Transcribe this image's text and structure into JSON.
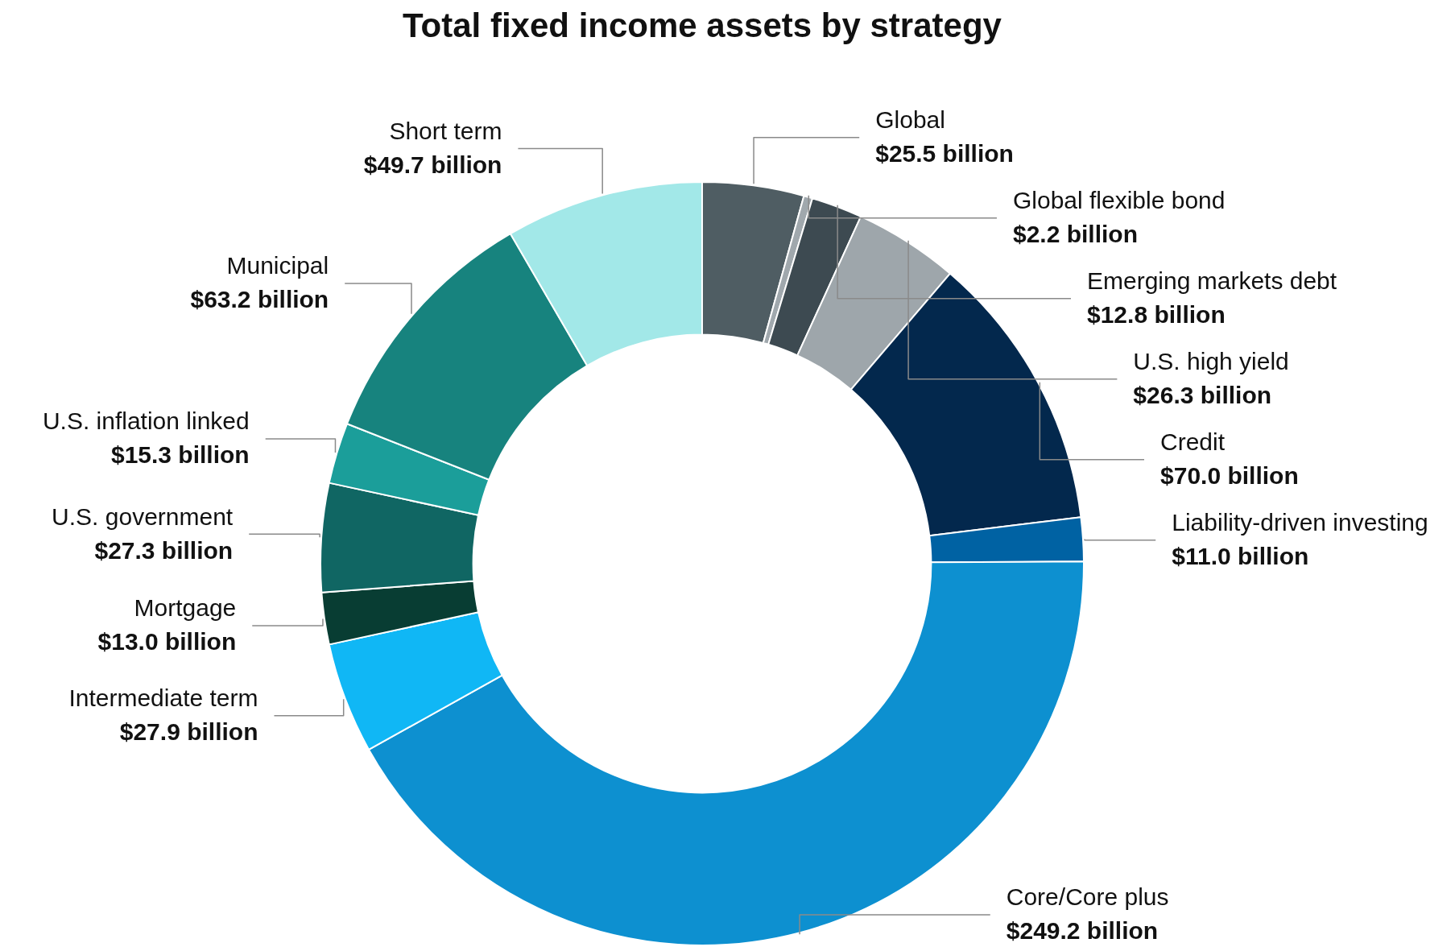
{
  "chart_data": {
    "type": "donut",
    "title": "Total fixed income assets by strategy",
    "categories": [
      "Global",
      "Global flexible bond",
      "Emerging markets debt",
      "U.S. high yield",
      "Credit",
      "Liability-driven investing",
      "Core/Core plus",
      "Intermediate term",
      "Mortgage",
      "U.S. government",
      "U.S. inflation linked",
      "Municipal",
      "Short term"
    ],
    "values": [
      25.5,
      2.2,
      12.8,
      26.3,
      70.0,
      11.0,
      249.2,
      27.9,
      13.0,
      27.3,
      15.3,
      63.2,
      49.7
    ],
    "value_labels": [
      "$25.5 billion",
      "$2.2 billion",
      "$12.8 billion",
      "$26.3 billion",
      "$70.0 billion",
      "$11.0 billion",
      "$249.2 billion",
      "$27.9 billion",
      "$13.0 billion",
      "$27.3 billion",
      "$15.3 billion",
      "$63.2 billion",
      "$49.7 billion"
    ],
    "colors": [
      "#4f5d63",
      "#a0a8ad",
      "#3d4a51",
      "#9ea6ab",
      "#03284d",
      "#0062a3",
      "#0d90d0",
      "#10b7f5",
      "#083d33",
      "#106663",
      "#1b9e9a",
      "#17837e",
      "#a2e8e8"
    ],
    "legend": false
  }
}
